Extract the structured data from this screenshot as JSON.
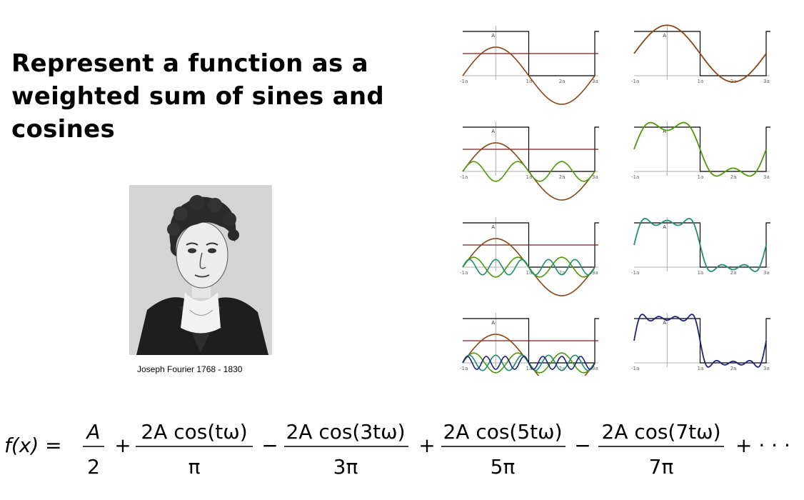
{
  "slide": {
    "title": "Represent a function as a weighted sum of sines and cosines",
    "caption": "Joseph Fourier 1768 - 1830"
  },
  "plot_axis": {
    "left_labels": [
      "-1a",
      "1a",
      "2a",
      "3a"
    ],
    "right_labels": [
      "-1a",
      "1a",
      "2a",
      "3a"
    ],
    "amplitude_label": "A"
  },
  "formula": {
    "lhs": "f(x) =",
    "t0_num": "A",
    "t0_den": "2",
    "op1": "+",
    "t1_num": "2A cos(tω)",
    "t1_den": "π",
    "op2": "−",
    "t2_num": "2A cos(3tω)",
    "t2_den": "3π",
    "op3": "+",
    "t3_num": "2A cos(5tω)",
    "t3_den": "5π",
    "op4": "−",
    "t4_num": "2A cos(7tω)",
    "t4_den": "7π",
    "tail": "+ · · ·"
  },
  "colors": {
    "harmonic_1": "#8B4513",
    "harmonic_3": "#4E9A06",
    "harmonic_5": "#1F8F70",
    "harmonic_7": "#1A237E",
    "dc_line": "#7A1F1F",
    "square": "#000000"
  },
  "harmonics_per_row": [
    1,
    3,
    5,
    7
  ]
}
